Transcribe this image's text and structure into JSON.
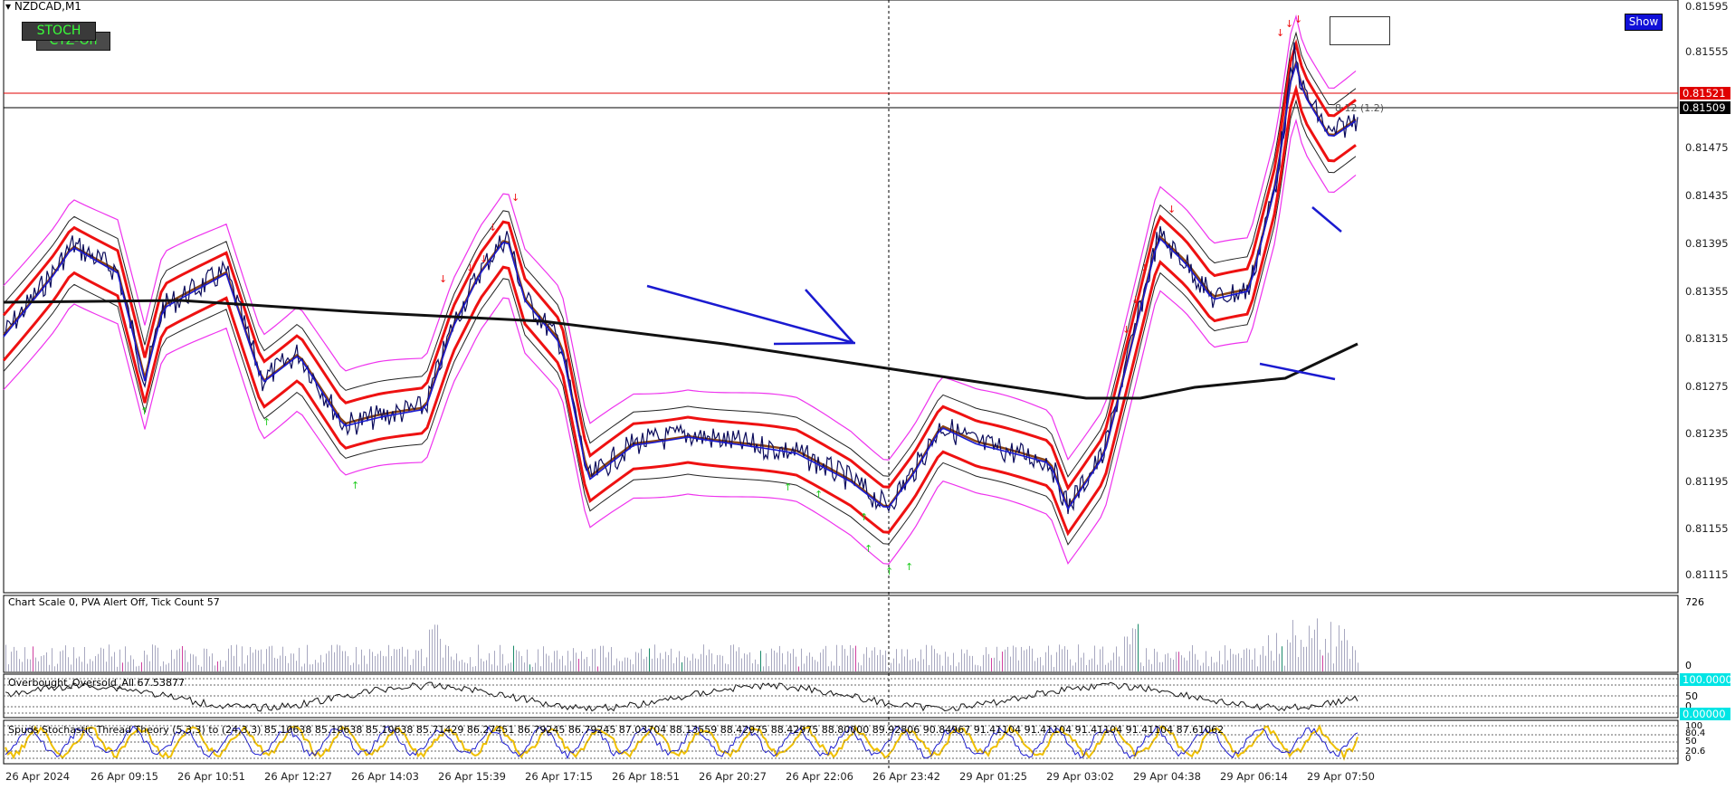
{
  "symbol_title": "NZDCAD,M1",
  "buttons": {
    "stoch": "STOCH",
    "ctz": "CTZ-On",
    "show": "Show"
  },
  "price_axis": [
    "0.81595",
    "0.81555",
    "0.81475",
    "0.81435",
    "0.81395",
    "0.81355",
    "0.81315",
    "0.81275",
    "0.81235",
    "0.81195",
    "0.81155",
    "0.81115"
  ],
  "price_tags": {
    "red": "0.81521",
    "black": "0.81509"
  },
  "cursor_readout": "8 12 (1.2)",
  "volume_panel": {
    "header": "Chart Scale  0,   PVA Alert Off,   Tick Count  57",
    "max": "726",
    "min": "0"
  },
  "obos_panel": {
    "header": "Overbought_Oversold_All 67.53877",
    "scale": [
      "100.00000",
      "50",
      "0",
      "0.00000"
    ]
  },
  "stoch_panel": {
    "header": "Spuds Stochastic Thread Theory (5,3,3) to (24,3,3) 85.10638 85.10638 85.10638 85.71429 86.27451 86.79245 86.79245 87.03704 88.13559 88.42975 88.42975 88.80000 89.92806 90.84967 91.41104 91.41104 91.41104 91.41104 87.61062",
    "scale": [
      "100",
      "80.4",
      "50",
      "20.6",
      "0"
    ]
  },
  "time_axis": [
    "26 Apr 2024",
    "26 Apr 09:15",
    "26 Apr 10:51",
    "26 Apr 12:27",
    "26 Apr 14:03",
    "26 Apr 15:39",
    "26 Apr 17:15",
    "26 Apr 18:51",
    "26 Apr 20:27",
    "26 Apr 22:06",
    "26 Apr 23:42",
    "29 Apr 01:25",
    "29 Apr 03:02",
    "29 Apr 04:38",
    "29 Apr 06:14",
    "29 Apr 07:50"
  ],
  "colors": {
    "price": "#0b0b5c",
    "red_band": "#ee1111",
    "ma_long": "#111111",
    "ma_brown": "#8b4513",
    "magenta": "#ee33ee",
    "blue_line": "#1a1ad0",
    "up_arrow": "#22cc22",
    "down_arrow": "#ee1111"
  }
}
